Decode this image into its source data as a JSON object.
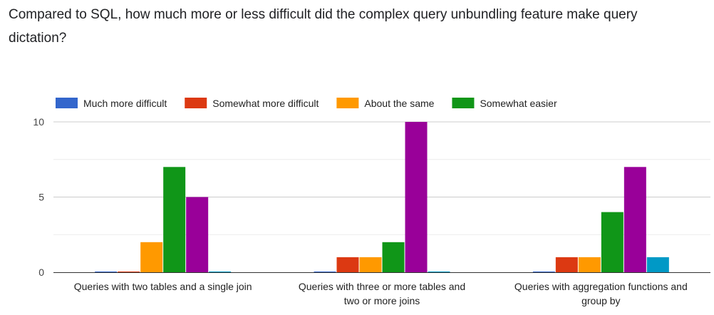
{
  "page": {
    "title": "Compared to SQL, how much more or less difficult did the complex query unbundling feature make query dictation?"
  },
  "chart_data": {
    "type": "bar",
    "categories": [
      [
        "Queries with two tables and a single join"
      ],
      [
        "Queries with three or more tables and",
        "two or more joins"
      ],
      [
        "Queries with aggregation functions and",
        "group by"
      ]
    ],
    "series": [
      {
        "name": "Much more difficult",
        "color": "#3366cc",
        "values": [
          0,
          0,
          0
        ]
      },
      {
        "name": "Somewhat more difficult",
        "color": "#dc3912",
        "values": [
          0,
          1,
          1
        ]
      },
      {
        "name": "About the same",
        "color": "#ff9900",
        "values": [
          2,
          1,
          1
        ]
      },
      {
        "name": "Somewhat easier",
        "color": "#109618",
        "values": [
          7,
          2,
          4
        ]
      },
      {
        "name": "",
        "color": "#990099",
        "values": [
          5,
          10,
          7
        ]
      },
      {
        "name": "",
        "color": "#0099c6",
        "values": [
          0,
          0,
          1
        ]
      }
    ],
    "ylim": [
      0,
      10
    ],
    "yticks": [
      0,
      5,
      10
    ],
    "grid": true,
    "legend_position": "top",
    "xlabel": "",
    "ylabel": ""
  }
}
